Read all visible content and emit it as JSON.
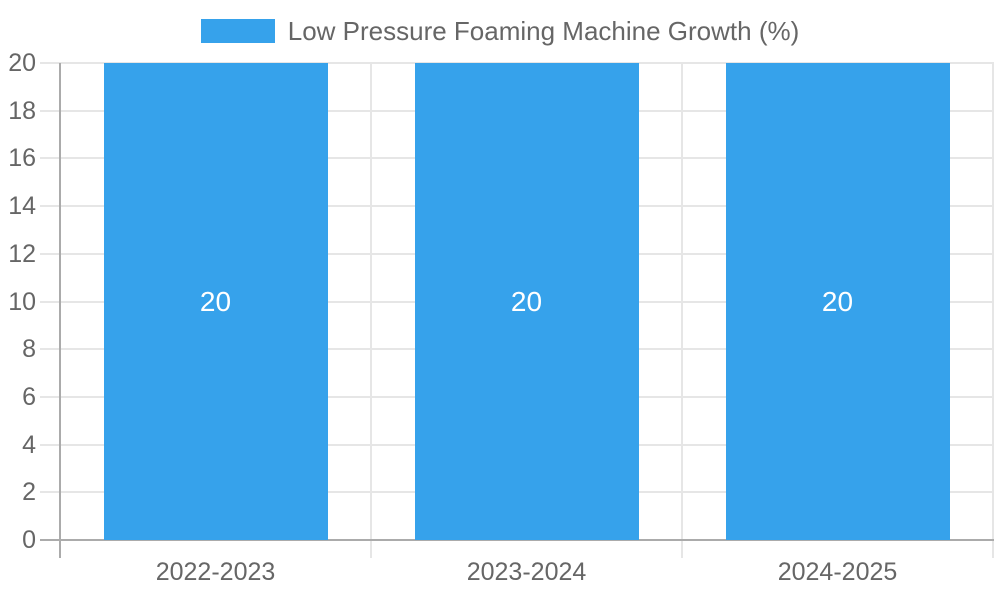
{
  "legend": {
    "label": "Low Pressure Foaming Machine Growth (%)"
  },
  "chart_data": {
    "type": "bar",
    "title": "",
    "categories": [
      "2022-2023",
      "2023-2024",
      "2024-2025"
    ],
    "series": [
      {
        "name": "Low Pressure Foaming Machine Growth (%)",
        "values": [
          20,
          20,
          20
        ]
      }
    ],
    "bar_value_labels": [
      "20",
      "20",
      "20"
    ],
    "xlabel": "",
    "ylabel": "",
    "ylim": [
      0,
      20
    ],
    "yticks": [
      0,
      2,
      4,
      6,
      8,
      10,
      12,
      14,
      16,
      18,
      20
    ],
    "grid": true,
    "legend_position": "top-center",
    "colors": {
      "bar": "#36A2EB",
      "grid_line": "#e6e6e6",
      "axis_line": "#ababab",
      "tick_text": "#666666",
      "legend_text": "#666666",
      "bar_label_text": "#ffffff",
      "background": "#ffffff"
    }
  }
}
